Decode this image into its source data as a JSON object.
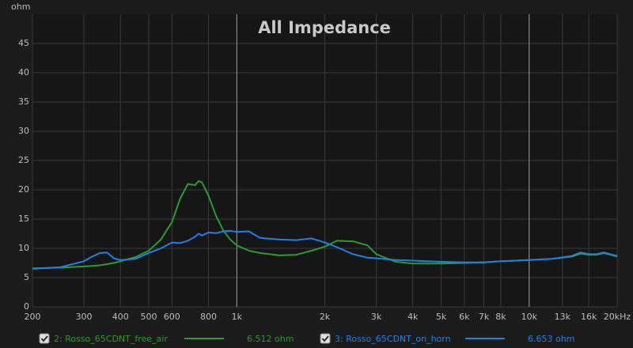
{
  "chart_data": {
    "type": "line",
    "title": "All Impedance",
    "y_label": "ohm",
    "log_x": true,
    "grid": true,
    "xlim": [
      200,
      20000
    ],
    "ylim": [
      0,
      50
    ],
    "yticks": [
      0,
      5,
      10,
      15,
      20,
      25,
      30,
      35,
      40,
      45
    ],
    "xticks": [
      200,
      300,
      400,
      500,
      600,
      800,
      {
        "value": 1000,
        "label": "1k"
      },
      {
        "value": 2000,
        "label": "2k"
      },
      {
        "value": 3000,
        "label": "3k"
      },
      {
        "value": 4000,
        "label": "4k"
      },
      {
        "value": 5000,
        "label": "5k"
      },
      {
        "value": 6000,
        "label": "6k"
      },
      {
        "value": 7000,
        "label": "7k"
      },
      {
        "value": 8000,
        "label": "8k"
      },
      {
        "value": 10000,
        "label": "10k"
      },
      {
        "value": 13000,
        "label": "13k"
      },
      {
        "value": 16000,
        "label": "16k"
      },
      {
        "value": 20000,
        "label": "20kHz"
      }
    ],
    "x": [
      200,
      250,
      300,
      320,
      340,
      360,
      380,
      400,
      450,
      500,
      550,
      600,
      640,
      680,
      720,
      740,
      760,
      800,
      850,
      900,
      950,
      1000,
      1100,
      1200,
      1400,
      1600,
      1800,
      2000,
      2200,
      2500,
      2800,
      3000,
      3500,
      4000,
      5000,
      6000,
      7000,
      8000,
      10000,
      12000,
      14000,
      15000,
      16000,
      17000,
      18000,
      20000
    ],
    "series": [
      {
        "name": "2: Rosso_65CDNT_free_air",
        "color": "#2a9b2e",
        "legend_value": "6.512 ohm",
        "values": [
          6.6,
          6.7,
          6.9,
          7.0,
          7.1,
          7.3,
          7.5,
          7.8,
          8.5,
          9.6,
          11.5,
          14.5,
          18.5,
          21,
          20.8,
          21.5,
          21.3,
          19,
          15.5,
          13,
          11.5,
          10.5,
          9.6,
          9.2,
          8.8,
          8.9,
          9.6,
          10.3,
          11.3,
          11.2,
          10.5,
          9,
          7.7,
          7.4,
          7.4,
          7.5,
          7.6,
          7.8,
          8.0,
          8.2,
          8.6,
          9.1,
          8.9,
          8.9,
          9.2,
          8.6
        ]
      },
      {
        "name": "3: Rosso_65CDNT_on_horn",
        "color": "#1f80e8",
        "legend_value": "6.653 ohm",
        "values": [
          6.5,
          6.8,
          7.8,
          8.6,
          9.2,
          9.3,
          8.3,
          8.0,
          8.2,
          9.2,
          10.0,
          11.0,
          10.9,
          11.3,
          12.0,
          12.5,
          12.2,
          12.7,
          12.6,
          12.9,
          13.0,
          12.8,
          12.9,
          11.8,
          11.5,
          11.4,
          11.7,
          11.0,
          10.2,
          9.0,
          8.4,
          8.3,
          8.0,
          7.9,
          7.7,
          7.6,
          7.6,
          7.8,
          8.0,
          8.2,
          8.7,
          9.3,
          9.0,
          9.0,
          9.3,
          8.7
        ]
      }
    ]
  }
}
